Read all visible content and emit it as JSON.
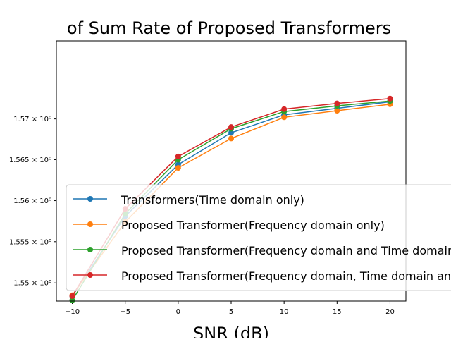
{
  "chart_data": {
    "type": "line",
    "title": "of Sum Rate of Proposed Transformers",
    "xlabel": "SNR (dB)",
    "ylabel": "",
    "x": [
      -10,
      -5,
      0,
      5,
      10,
      15,
      20
    ],
    "xlim": [
      -11.5,
      21.5
    ],
    "ylim": [
      1.5478,
      1.5796
    ],
    "yscale": "log",
    "xticks": [
      -10,
      -5,
      0,
      5,
      10,
      15,
      20
    ],
    "xtick_labels": [
      "−10",
      "−5",
      "0",
      "5",
      "10",
      "15",
      "20"
    ],
    "yticks": [
      1.55,
      1.555,
      1.56,
      1.565,
      1.57
    ],
    "ytick_labels": [
      "1.55 × 10⁰",
      "1.555 × 10⁰",
      "1.56 × 10⁰",
      "1.565 × 10⁰",
      "1.57 × 10⁰"
    ],
    "grid": false,
    "legend_position": "lower-right",
    "series": [
      {
        "name": "Transformers(Time domain only)",
        "color": "#1f77b4",
        "values": [
          1.5484,
          1.5581,
          1.5644,
          1.5683,
          1.5705,
          1.5713,
          1.5721
        ]
      },
      {
        "name": "Proposed Transformer(Frequency domain only)",
        "color": "#ff7f0e",
        "values": [
          1.5485,
          1.5574,
          1.564,
          1.5676,
          1.5702,
          1.571,
          1.5718
        ]
      },
      {
        "name": "Proposed Transformer(Frequency domain and Time domain)",
        "color": "#2ca02c",
        "values": [
          1.5479,
          1.5584,
          1.565,
          1.5688,
          1.5709,
          1.5716,
          1.5722
        ]
      },
      {
        "name": "Proposed Transformer(Frequency domain, Time domain and Space domain)",
        "color": "#d62728",
        "values": [
          1.5484,
          1.559,
          1.5654,
          1.569,
          1.5712,
          1.5719,
          1.5725
        ]
      }
    ]
  }
}
